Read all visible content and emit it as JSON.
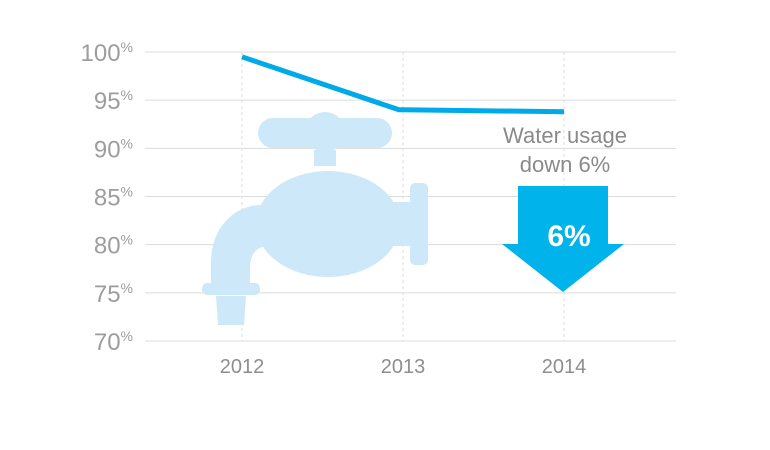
{
  "colors": {
    "line": "#00a9e8",
    "faucet": "#cde9f9",
    "arrow": "#00b3ea",
    "gridline": "#dcdcdc",
    "tick_text": "#9d9d9d"
  },
  "icons": [
    "faucet-icon",
    "down-arrow-icon"
  ],
  "chart_data": {
    "type": "line",
    "title": "",
    "xlabel": "",
    "ylabel": "",
    "x": [
      "2012",
      "2013",
      "2014"
    ],
    "series": [
      {
        "values": [
          99.5,
          94,
          93.8
        ]
      }
    ],
    "ylim": [
      70,
      100
    ],
    "y_ticks": [
      {
        "value": 100,
        "num": "100",
        "unit": "%"
      },
      {
        "value": 95,
        "num": "95",
        "unit": "%"
      },
      {
        "value": 90,
        "num": "90",
        "unit": "%"
      },
      {
        "value": 85,
        "num": "85",
        "unit": "%"
      },
      {
        "value": 80,
        "num": "80",
        "unit": "%"
      },
      {
        "value": 75,
        "num": "75",
        "unit": "%"
      },
      {
        "value": 70,
        "num": "70",
        "unit": "%"
      }
    ],
    "grid": true,
    "annotations": {
      "callout_line1": "Water usage",
      "callout_line2": "down 6%",
      "arrow_label": "6%"
    }
  }
}
